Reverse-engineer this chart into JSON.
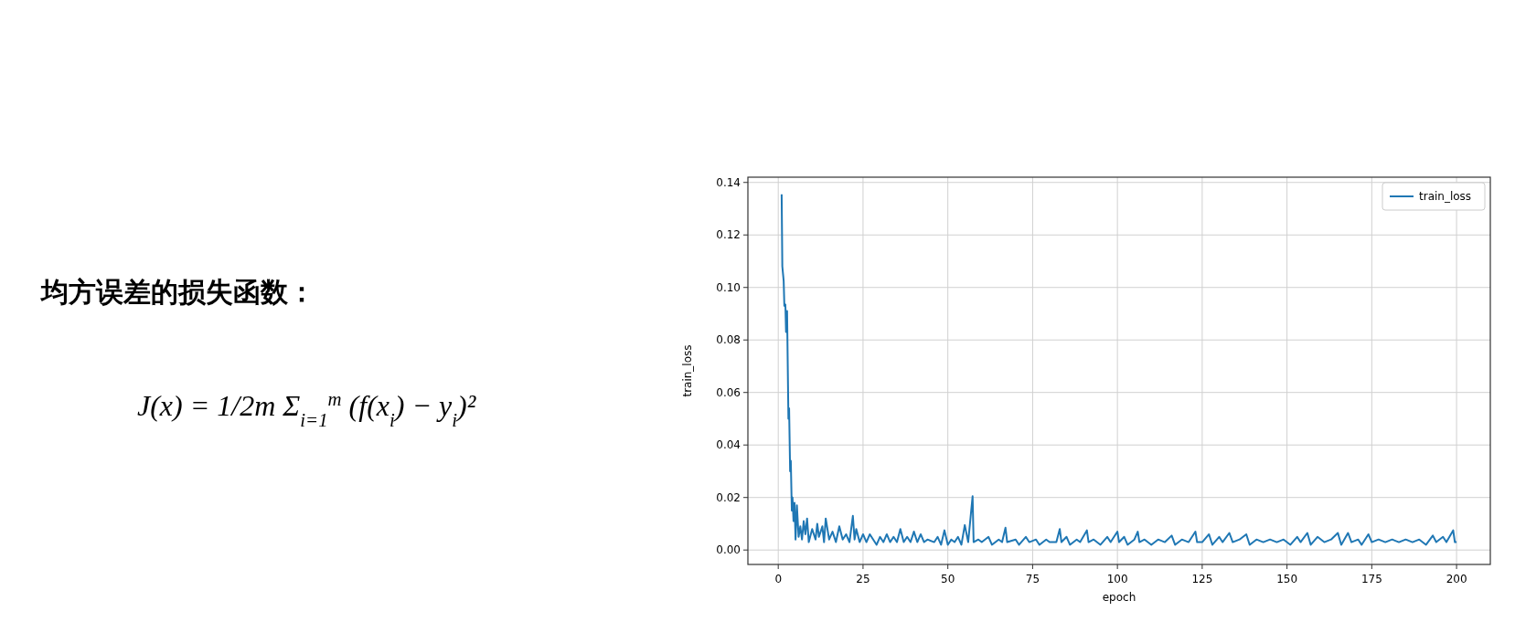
{
  "chart_data": {
    "type": "line",
    "xlabel": "epoch",
    "ylabel": "train_loss",
    "annotations": [
      "均方误差的损失函数：",
      "J(x) = 1/2m Σ$_{i=1}$$^{m}$ (f(x$_{i}$) − y$_{i}$)²"
    ],
    "xlim": [
      -8.95,
      209.95
    ],
    "xticks": [
      0,
      25,
      50,
      75,
      100,
      125,
      150,
      175,
      200
    ],
    "ylim": [
      -0.0055,
      0.142
    ],
    "yticks": [
      {
        "value": 0,
        "label": "0.00"
      },
      {
        "value": 0.02,
        "label": "0.02"
      },
      {
        "value": 0.04,
        "label": "0.04"
      },
      {
        "value": 0.06,
        "label": "0.06"
      },
      {
        "value": 0.08,
        "label": "0.08"
      },
      {
        "value": 0.1,
        "label": "0.10"
      },
      {
        "value": 0.12,
        "label": "0.12"
      },
      {
        "value": 0.14,
        "label": "0.14"
      }
    ],
    "grid": true,
    "legend": "top right",
    "series": [
      {
        "name": "train_loss",
        "color": "#1f77b4",
        "x": [
          1,
          1.2,
          1.6,
          1.8,
          2.1,
          2.3,
          2.6,
          3,
          3.2,
          3.5,
          3.7,
          4,
          4.2,
          4.5,
          4.8,
          5.1,
          5.5,
          6,
          6.5,
          7,
          7.5,
          8,
          8.5,
          9,
          10,
          11,
          11.5,
          12,
          13,
          13.5,
          14,
          15,
          16,
          17,
          18,
          19,
          20,
          21,
          22,
          22.5,
          23,
          24,
          25,
          26,
          27,
          28,
          29,
          30,
          31,
          32,
          33,
          34,
          35,
          36,
          37,
          38,
          39,
          40,
          41,
          42,
          43,
          44,
          46,
          47,
          48,
          49,
          50,
          51,
          52,
          53,
          54,
          55,
          56,
          57.3,
          57.6,
          59,
          60,
          62,
          63,
          65,
          66,
          67,
          67.5,
          70,
          71,
          73,
          74,
          76,
          77,
          79,
          80,
          82,
          83,
          83.5,
          85,
          86,
          88,
          89,
          91,
          91.5,
          93,
          95,
          97,
          98,
          100,
          100.5,
          102,
          103,
          105,
          106,
          106.5,
          108,
          110,
          112,
          114,
          116,
          117,
          119,
          121,
          123,
          123.5,
          125,
          127,
          128,
          130,
          131,
          133,
          134,
          136,
          138,
          139,
          141,
          143,
          145,
          147,
          149,
          151,
          153,
          154,
          156,
          157,
          159,
          161,
          163,
          165,
          166,
          168,
          169,
          171,
          172,
          174,
          175,
          177,
          179,
          181,
          183,
          185,
          187,
          189,
          191,
          193,
          194,
          196,
          197,
          199,
          199.5,
          200
        ],
        "values": [
          0.1355,
          0.108,
          0.1025,
          0.093,
          0.0935,
          0.083,
          0.091,
          0.05,
          0.054,
          0.03,
          0.034,
          0.015,
          0.02,
          0.011,
          0.018,
          0.004,
          0.017,
          0.005,
          0.009,
          0.004,
          0.011,
          0.006,
          0.012,
          0.003,
          0.008,
          0.004,
          0.01,
          0.005,
          0.009,
          0.003,
          0.012,
          0.004,
          0.007,
          0.003,
          0.009,
          0.004,
          0.006,
          0.003,
          0.013,
          0.004,
          0.008,
          0.003,
          0.006,
          0.003,
          0.006,
          0.004,
          0.002,
          0.005,
          0.003,
          0.006,
          0.003,
          0.005,
          0.003,
          0.008,
          0.003,
          0.005,
          0.003,
          0.007,
          0.003,
          0.006,
          0.003,
          0.004,
          0.003,
          0.005,
          0.002,
          0.0075,
          0.002,
          0.004,
          0.003,
          0.005,
          0.002,
          0.0095,
          0.003,
          0.0205,
          0.003,
          0.004,
          0.003,
          0.005,
          0.002,
          0.004,
          0.003,
          0.0085,
          0.003,
          0.004,
          0.002,
          0.005,
          0.003,
          0.004,
          0.002,
          0.004,
          0.003,
          0.003,
          0.008,
          0.003,
          0.005,
          0.002,
          0.004,
          0.003,
          0.0075,
          0.003,
          0.004,
          0.002,
          0.005,
          0.003,
          0.007,
          0.003,
          0.005,
          0.002,
          0.004,
          0.007,
          0.003,
          0.004,
          0.002,
          0.004,
          0.003,
          0.0055,
          0.002,
          0.004,
          0.003,
          0.007,
          0.003,
          0.003,
          0.006,
          0.002,
          0.005,
          0.003,
          0.0065,
          0.003,
          0.004,
          0.006,
          0.002,
          0.004,
          0.003,
          0.004,
          0.003,
          0.004,
          0.002,
          0.005,
          0.003,
          0.0065,
          0.002,
          0.005,
          0.003,
          0.004,
          0.0065,
          0.002,
          0.0065,
          0.003,
          0.004,
          0.002,
          0.006,
          0.003,
          0.004,
          0.003,
          0.004,
          0.003,
          0.004,
          0.003,
          0.004,
          0.002,
          0.0055,
          0.003,
          0.005,
          0.003,
          0.0075,
          0.003,
          0.003
        ]
      }
    ]
  }
}
